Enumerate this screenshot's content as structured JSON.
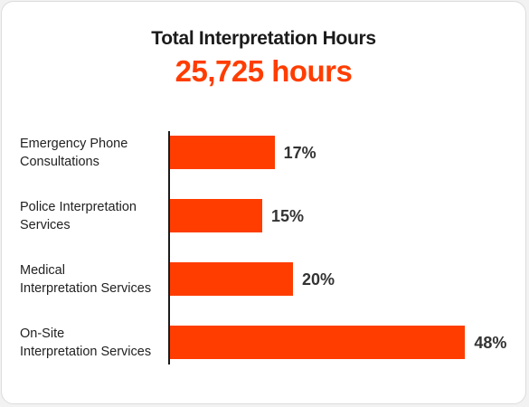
{
  "chart_data": {
    "type": "bar",
    "orientation": "horizontal",
    "title": "Total Interpretation Hours",
    "subtitle": "25,725 hours",
    "categories": [
      "Emergency Phone\nConsultations",
      "Police Interpretation\nServices",
      "Medical\nInterpretation Services",
      "On-Site\nInterpretation Services"
    ],
    "values": [
      17,
      15,
      20,
      48
    ],
    "value_labels": [
      "17%",
      "15%",
      "20%",
      "48%"
    ],
    "xlim": [
      0,
      100
    ],
    "grid": false,
    "legend": "none"
  },
  "colors": {
    "accent": "#ff3d00",
    "bar": "#ff3d00"
  }
}
